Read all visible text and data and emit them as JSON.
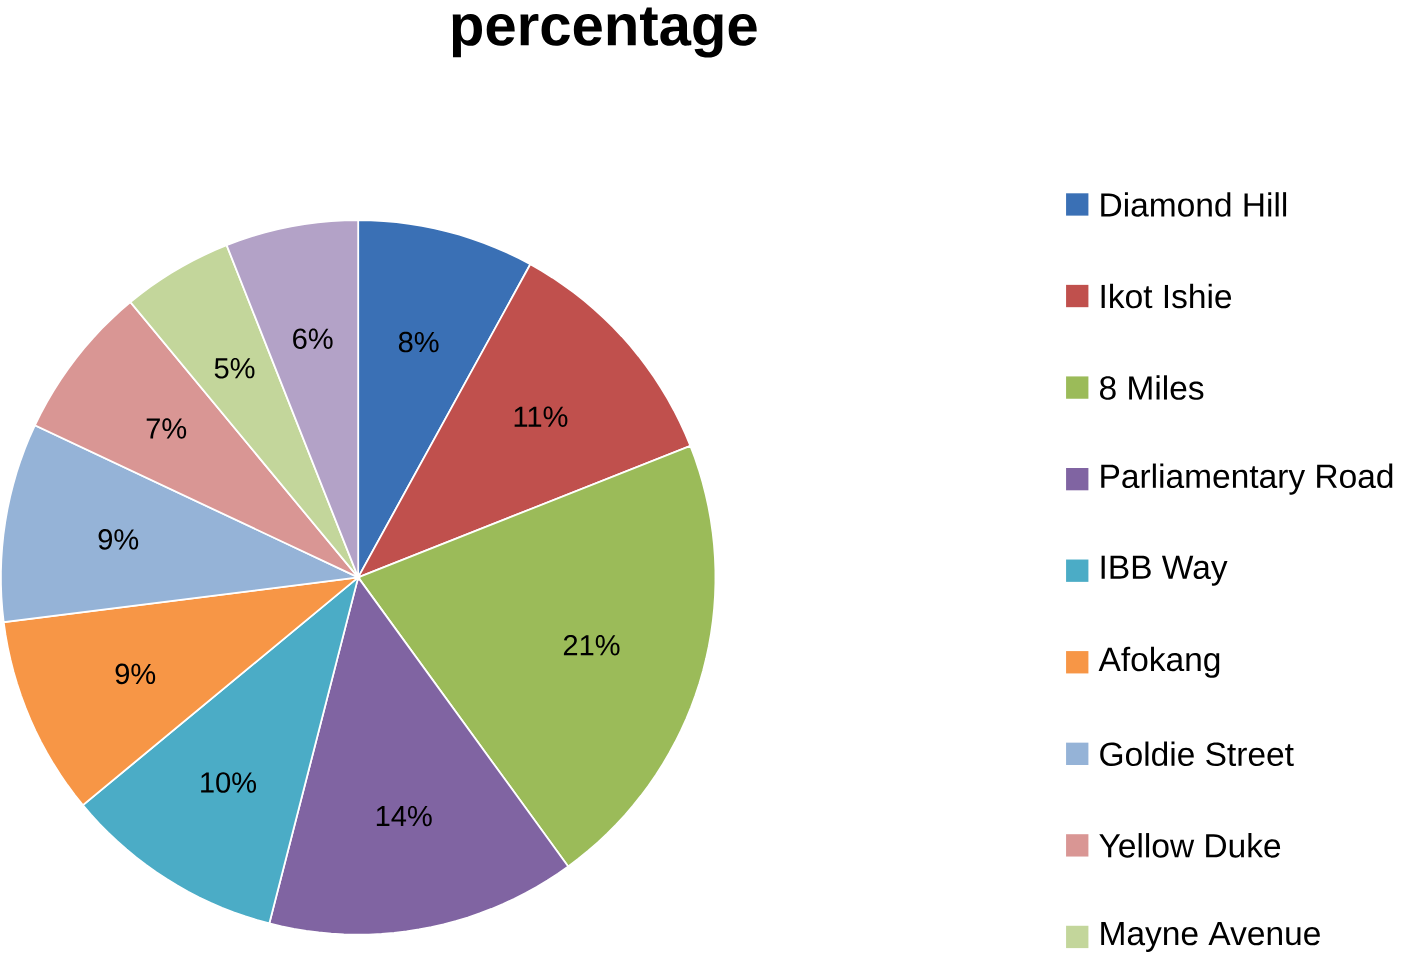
{
  "chart_data": {
    "type": "pie",
    "title": "percentage",
    "categories": [
      "Diamond Hill",
      "Ikot Ishie",
      "8 Miles",
      "Parliamentary Road",
      "IBB Way",
      "Afokang",
      "Goldie Street",
      "Yellow Duke",
      "Mayne Avenue",
      null
    ],
    "values": [
      8,
      11,
      21,
      14,
      10,
      9,
      9,
      7,
      5,
      6
    ],
    "colors": [
      "#3a70b5",
      "#c0504d",
      "#9bbb59",
      "#8064a2",
      "#4bacc6",
      "#f79646",
      "#95b3d7",
      "#d99694",
      "#c3d69b",
      "#b3a2c7"
    ],
    "value_labels": [
      "8%",
      "11%",
      "21%",
      "14%",
      "10%",
      "9%",
      "9%",
      "7%",
      "5%",
      "6%"
    ],
    "legend": "right"
  }
}
